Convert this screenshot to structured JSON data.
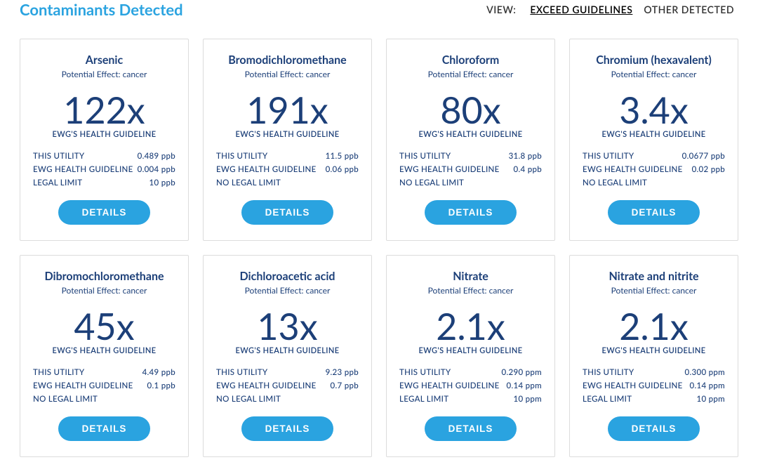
{
  "header": {
    "title": "Contaminants Detected",
    "view_label": "VIEW:",
    "tabs": {
      "exceed": "EXCEED GUIDELINES",
      "other": "OTHER DETECTED"
    },
    "active_tab": "exceed"
  },
  "labels": {
    "guideline_sub": "EWG'S HEALTH GUIDELINE",
    "this_utility": "THIS UTILITY",
    "ewg_guideline": "EWG HEALTH GUIDELINE",
    "legal_limit": "LEGAL LIMIT",
    "no_legal_limit": "NO LEGAL LIMIT",
    "details_button": "DETAILS",
    "effect_prefix": "Potential Effect: "
  },
  "colors": {
    "accent_blue": "#2aa3e0",
    "dark_blue": "#1c3f78",
    "card_border": "#dcdcdc",
    "bg": "#ffffff"
  },
  "cards": [
    {
      "name": "Arsenic",
      "effect": "cancer",
      "multiplier": "122x",
      "utility": "0.489 ppb",
      "guideline": "0.004 ppb",
      "legal": "10 ppb"
    },
    {
      "name": "Bromodichloromethane",
      "effect": "cancer",
      "multiplier": "191x",
      "utility": "11.5 ppb",
      "guideline": "0.06 ppb",
      "legal": null
    },
    {
      "name": "Chloroform",
      "effect": "cancer",
      "multiplier": "80x",
      "utility": "31.8 ppb",
      "guideline": "0.4 ppb",
      "legal": null
    },
    {
      "name": "Chromium (hexavalent)",
      "effect": "cancer",
      "multiplier": "3.4x",
      "utility": "0.0677 ppb",
      "guideline": "0.02 ppb",
      "legal": null
    },
    {
      "name": "Dibromochloromethane",
      "effect": "cancer",
      "multiplier": "45x",
      "utility": "4.49 ppb",
      "guideline": "0.1 ppb",
      "legal": null
    },
    {
      "name": "Dichloroacetic acid",
      "effect": "cancer",
      "multiplier": "13x",
      "utility": "9.23 ppb",
      "guideline": "0.7 ppb",
      "legal": null
    },
    {
      "name": "Nitrate",
      "effect": "cancer",
      "multiplier": "2.1x",
      "utility": "0.290 ppm",
      "guideline": "0.14 ppm",
      "legal": "10 ppm"
    },
    {
      "name": "Nitrate and nitrite",
      "effect": "cancer",
      "multiplier": "2.1x",
      "utility": "0.300 ppm",
      "guideline": "0.14 ppm",
      "legal": "10 ppm"
    }
  ]
}
